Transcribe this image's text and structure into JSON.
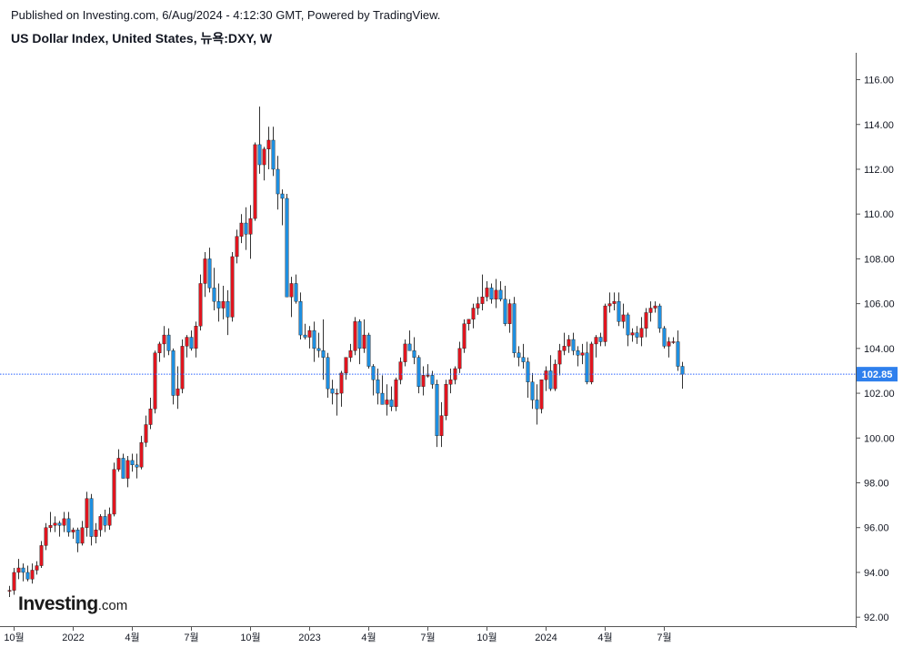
{
  "header": {
    "published": "Published on Investing.com, 6/Aug/2024 - 4:12:30 GMT, Powered by TradingView.",
    "title": "US Dollar Index, United States, 뉴욕:DXY, W"
  },
  "logo": {
    "brand": "Investing",
    "domain": ".com"
  },
  "colors": {
    "up": "#e0151f",
    "down": "#1e8fe0",
    "wick": "#333333",
    "price_line": "#2962ff",
    "price_label_bg": "#2f80ed"
  },
  "chart_data": {
    "type": "candlestick",
    "title": "US Dollar Index, United States, 뉴욕:DXY, W",
    "ylim": [
      91.6,
      117.2
    ],
    "y_ticks": [
      92,
      94,
      96,
      98,
      100,
      102,
      104,
      106,
      108,
      110,
      112,
      114,
      116
    ],
    "y_tick_labels": [
      "92.00",
      "94.00",
      "96.00",
      "98.00",
      "100.00",
      "102.00",
      "104.00",
      "106.00",
      "108.00",
      "110.00",
      "112.00",
      "114.00",
      "116.00"
    ],
    "x_ticks": [
      {
        "index": 1,
        "label": "10월"
      },
      {
        "index": 14,
        "label": "2022"
      },
      {
        "index": 27,
        "label": "4월"
      },
      {
        "index": 40,
        "label": "7월"
      },
      {
        "index": 53,
        "label": "10월"
      },
      {
        "index": 66,
        "label": "2023"
      },
      {
        "index": 79,
        "label": "4월"
      },
      {
        "index": 92,
        "label": "7월"
      },
      {
        "index": 105,
        "label": "10월"
      },
      {
        "index": 118,
        "label": "2024"
      },
      {
        "index": 131,
        "label": "4월"
      },
      {
        "index": 144,
        "label": "7월"
      }
    ],
    "last_price": 102.85,
    "last_price_label": "102.85",
    "candles": [
      [
        93.2,
        93.4,
        92.9,
        93.2
      ],
      [
        93.2,
        94.2,
        93.0,
        94.0
      ],
      [
        94.0,
        94.6,
        93.7,
        94.2
      ],
      [
        94.2,
        94.4,
        93.6,
        94.0
      ],
      [
        94.0,
        94.3,
        93.6,
        93.7
      ],
      [
        93.7,
        94.4,
        93.5,
        94.1
      ],
      [
        94.1,
        94.5,
        93.9,
        94.3
      ],
      [
        94.3,
        95.4,
        94.2,
        95.2
      ],
      [
        95.2,
        96.2,
        95.0,
        96.0
      ],
      [
        96.0,
        96.7,
        95.8,
        96.1
      ],
      [
        96.1,
        96.5,
        95.8,
        96.2
      ],
      [
        96.2,
        96.3,
        95.6,
        96.1
      ],
      [
        96.1,
        96.7,
        95.8,
        96.4
      ],
      [
        96.4,
        96.7,
        95.6,
        95.8
      ],
      [
        95.8,
        96.0,
        95.5,
        95.9
      ],
      [
        95.9,
        96.0,
        94.9,
        95.3
      ],
      [
        95.3,
        96.3,
        95.2,
        96.0
      ],
      [
        96.0,
        97.6,
        95.6,
        97.3
      ],
      [
        97.3,
        97.5,
        95.2,
        95.6
      ],
      [
        95.6,
        96.2,
        95.3,
        95.9
      ],
      [
        95.9,
        96.6,
        95.6,
        96.5
      ],
      [
        96.5,
        96.8,
        95.8,
        96.1
      ],
      [
        96.1,
        96.9,
        95.9,
        96.6
      ],
      [
        96.6,
        98.9,
        96.5,
        98.6
      ],
      [
        98.6,
        99.5,
        98.5,
        99.1
      ],
      [
        99.1,
        99.3,
        98.2,
        98.2
      ],
      [
        98.2,
        99.2,
        97.8,
        99.0
      ],
      [
        99.0,
        99.3,
        98.5,
        98.8
      ],
      [
        98.8,
        99.3,
        98.2,
        98.7
      ],
      [
        98.7,
        100.1,
        98.6,
        99.8
      ],
      [
        99.8,
        101.0,
        99.6,
        100.6
      ],
      [
        100.6,
        101.8,
        100.4,
        101.3
      ],
      [
        101.3,
        103.9,
        101.1,
        103.8
      ],
      [
        103.8,
        104.3,
        103.4,
        104.2
      ],
      [
        104.2,
        105.0,
        103.6,
        104.6
      ],
      [
        104.6,
        104.9,
        103.7,
        103.9
      ],
      [
        103.9,
        104.0,
        101.5,
        101.9
      ],
      [
        101.9,
        103.2,
        101.3,
        102.2
      ],
      [
        102.2,
        104.4,
        102.0,
        104.1
      ],
      [
        104.1,
        104.6,
        103.6,
        104.5
      ],
      [
        104.5,
        104.8,
        103.9,
        104.0
      ],
      [
        104.0,
        105.2,
        103.6,
        105.0
      ],
      [
        105.0,
        107.3,
        104.8,
        106.9
      ],
      [
        106.9,
        108.3,
        106.3,
        108.0
      ],
      [
        108.0,
        108.5,
        106.5,
        106.7
      ],
      [
        106.7,
        107.6,
        105.7,
        106.1
      ],
      [
        106.1,
        106.9,
        105.2,
        105.8
      ],
      [
        105.8,
        106.8,
        105.3,
        106.1
      ],
      [
        106.1,
        106.6,
        104.6,
        105.4
      ],
      [
        105.4,
        108.3,
        105.2,
        108.1
      ],
      [
        108.1,
        109.3,
        107.8,
        109.0
      ],
      [
        109.0,
        110.0,
        108.7,
        109.6
      ],
      [
        109.6,
        110.3,
        108.4,
        109.1
      ],
      [
        109.1,
        110.4,
        108.0,
        109.8
      ],
      [
        109.8,
        113.2,
        109.7,
        113.1
      ],
      [
        113.1,
        114.8,
        111.8,
        112.2
      ],
      [
        112.2,
        113.0,
        111.5,
        112.9
      ],
      [
        112.9,
        113.9,
        112.0,
        113.3
      ],
      [
        113.3,
        113.9,
        111.7,
        112.0
      ],
      [
        112.0,
        112.6,
        110.2,
        110.9
      ],
      [
        110.9,
        111.1,
        109.5,
        110.7
      ],
      [
        110.7,
        110.9,
        106.3,
        106.3
      ],
      [
        106.3,
        107.2,
        105.4,
        106.9
      ],
      [
        106.9,
        107.3,
        106.0,
        106.1
      ],
      [
        106.1,
        106.5,
        104.4,
        104.6
      ],
      [
        104.6,
        105.1,
        104.4,
        104.5
      ],
      [
        104.5,
        105.0,
        104.0,
        104.8
      ],
      [
        104.8,
        105.2,
        103.4,
        104.0
      ],
      [
        104.0,
        104.7,
        103.6,
        103.9
      ],
      [
        103.9,
        105.3,
        102.6,
        103.6
      ],
      [
        103.6,
        103.8,
        101.8,
        102.2
      ],
      [
        102.2,
        102.6,
        101.5,
        102.0
      ],
      [
        102.0,
        102.2,
        101.0,
        102.0
      ],
      [
        102.0,
        103.0,
        101.4,
        102.9
      ],
      [
        102.9,
        103.6,
        102.6,
        103.6
      ],
      [
        103.6,
        104.2,
        103.4,
        103.9
      ],
      [
        103.9,
        105.4,
        103.7,
        105.2
      ],
      [
        105.2,
        105.3,
        103.3,
        104.0
      ],
      [
        104.0,
        105.3,
        103.8,
        104.6
      ],
      [
        104.6,
        104.7,
        103.1,
        103.2
      ],
      [
        103.2,
        103.3,
        101.9,
        102.6
      ],
      [
        102.6,
        103.1,
        101.5,
        102.0
      ],
      [
        102.0,
        102.8,
        101.5,
        101.5
      ],
      [
        101.5,
        102.4,
        101.0,
        101.7
      ],
      [
        101.7,
        102.3,
        101.2,
        101.4
      ],
      [
        101.4,
        102.7,
        101.2,
        102.6
      ],
      [
        102.6,
        103.6,
        102.4,
        103.4
      ],
      [
        103.4,
        104.4,
        103.2,
        104.2
      ],
      [
        104.2,
        104.8,
        103.9,
        103.9
      ],
      [
        103.9,
        104.5,
        103.3,
        103.6
      ],
      [
        103.6,
        103.7,
        102.0,
        102.3
      ],
      [
        102.3,
        103.2,
        101.9,
        102.8
      ],
      [
        102.8,
        103.3,
        102.7,
        102.8
      ],
      [
        102.8,
        103.0,
        102.2,
        102.4
      ],
      [
        102.4,
        102.6,
        99.6,
        100.1
      ],
      [
        100.1,
        101.6,
        99.6,
        101.0
      ],
      [
        101.0,
        102.6,
        100.8,
        102.4
      ],
      [
        102.4,
        103.1,
        102.0,
        102.6
      ],
      [
        102.6,
        103.2,
        102.4,
        103.1
      ],
      [
        103.1,
        104.3,
        102.9,
        104.0
      ],
      [
        104.0,
        105.3,
        103.8,
        105.1
      ],
      [
        105.1,
        105.3,
        104.8,
        105.3
      ],
      [
        105.3,
        106.0,
        104.9,
        105.8
      ],
      [
        105.8,
        106.3,
        105.5,
        106.0
      ],
      [
        106.0,
        107.3,
        105.7,
        106.3
      ],
      [
        106.3,
        107.0,
        106.1,
        106.7
      ],
      [
        106.7,
        106.9,
        106.0,
        106.2
      ],
      [
        106.2,
        107.1,
        105.8,
        106.6
      ],
      [
        106.6,
        107.0,
        106.1,
        106.2
      ],
      [
        106.2,
        106.8,
        105.0,
        105.1
      ],
      [
        105.1,
        106.2,
        104.7,
        106.0
      ],
      [
        106.0,
        106.3,
        103.6,
        103.8
      ],
      [
        103.8,
        104.1,
        103.2,
        103.6
      ],
      [
        103.6,
        104.2,
        103.1,
        103.4
      ],
      [
        103.4,
        103.6,
        101.8,
        102.5
      ],
      [
        102.5,
        102.9,
        101.3,
        101.7
      ],
      [
        101.7,
        102.4,
        100.6,
        101.3
      ],
      [
        101.3,
        102.6,
        101.1,
        102.6
      ],
      [
        102.6,
        103.2,
        102.1,
        103.0
      ],
      [
        103.0,
        103.7,
        102.1,
        102.2
      ],
      [
        102.2,
        103.5,
        102.1,
        103.3
      ],
      [
        103.3,
        104.2,
        102.8,
        103.9
      ],
      [
        103.9,
        104.7,
        103.7,
        104.1
      ],
      [
        104.1,
        104.6,
        103.8,
        104.4
      ],
      [
        104.4,
        104.7,
        103.7,
        103.9
      ],
      [
        103.9,
        104.1,
        103.2,
        103.7
      ],
      [
        103.7,
        104.2,
        103.3,
        103.8
      ],
      [
        103.8,
        104.3,
        102.4,
        102.5
      ],
      [
        102.5,
        104.3,
        102.4,
        104.2
      ],
      [
        104.2,
        104.6,
        103.6,
        104.5
      ],
      [
        104.5,
        104.7,
        104.1,
        104.3
      ],
      [
        104.3,
        106.0,
        104.1,
        105.9
      ],
      [
        105.9,
        106.5,
        105.6,
        106.0
      ],
      [
        106.0,
        106.5,
        105.7,
        106.1
      ],
      [
        106.1,
        106.5,
        105.0,
        105.2
      ],
      [
        105.2,
        106.0,
        104.9,
        105.5
      ],
      [
        105.5,
        105.6,
        104.1,
        104.6
      ],
      [
        104.6,
        104.9,
        104.3,
        104.7
      ],
      [
        104.7,
        105.0,
        104.2,
        104.5
      ],
      [
        104.5,
        105.4,
        104.1,
        104.9
      ],
      [
        104.9,
        105.8,
        104.5,
        105.6
      ],
      [
        105.6,
        106.1,
        105.2,
        105.8
      ],
      [
        105.8,
        106.1,
        105.6,
        105.9
      ],
      [
        105.9,
        106.0,
        104.7,
        104.9
      ],
      [
        104.9,
        105.0,
        104.0,
        104.1
      ],
      [
        104.1,
        104.5,
        103.6,
        104.3
      ],
      [
        104.3,
        104.5,
        104.2,
        104.3
      ],
      [
        104.3,
        104.8,
        103.0,
        103.2
      ],
      [
        103.2,
        103.4,
        102.2,
        102.85
      ]
    ]
  }
}
